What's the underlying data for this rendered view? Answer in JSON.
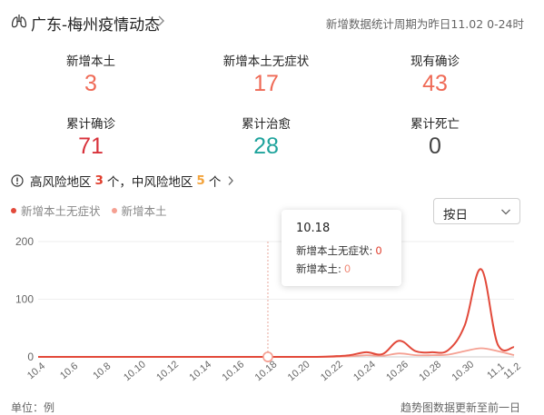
{
  "header": {
    "title": "广东-梅州疫情动态",
    "period_note": "新增数据统计周期为昨日11.02 0-24时"
  },
  "stats": [
    {
      "label": "新增本土",
      "value": "3",
      "color": "#ef6a56"
    },
    {
      "label": "新增本土无症状",
      "value": "17",
      "color": "#ef6a56"
    },
    {
      "label": "现有确诊",
      "value": "43",
      "color": "#ef6a56"
    },
    {
      "label": "累计确诊",
      "value": "71",
      "color": "#d8313a"
    },
    {
      "label": "累计治愈",
      "value": "28",
      "color": "#1ea39c"
    },
    {
      "label": "累计死亡",
      "value": "0",
      "color": "#444444"
    }
  ],
  "risk": {
    "high_label": "高风险地区",
    "high_count": "3",
    "unit": "个",
    "sep": "，",
    "mid_label": "中风险地区",
    "mid_count": "5",
    "high_color": "#e03e2d",
    "mid_color": "#f3a33b"
  },
  "legend": {
    "series1": "新增本土无症状",
    "series2": "新增本土",
    "color1": "#e2493a",
    "color2": "#f5a092"
  },
  "select": {
    "value": "按日"
  },
  "tooltip": {
    "date": "10.18",
    "row1_label": "新增本土无症状:",
    "row1_value": "0",
    "row2_label": "新增本土:",
    "row2_value": "0"
  },
  "chart_data": {
    "type": "line",
    "x": [
      "10.4",
      "10.5",
      "10.6",
      "10.7",
      "10.8",
      "10.9",
      "10.10",
      "10.11",
      "10.12",
      "10.13",
      "10.14",
      "10.15",
      "10.16",
      "10.17",
      "10.18",
      "10.19",
      "10.20",
      "10.21",
      "10.22",
      "10.23",
      "10.24",
      "10.25",
      "10.26",
      "10.27",
      "10.28",
      "10.29",
      "10.30",
      "10.31",
      "11.1",
      "11.2"
    ],
    "x_tick_labels": [
      "10.4",
      "10.6",
      "10.8",
      "10.10",
      "10.12",
      "10.14",
      "10.16",
      "10.18",
      "10.20",
      "10.22",
      "10.24",
      "10.26",
      "10.28",
      "10.30",
      "11.1",
      "11.2"
    ],
    "series": [
      {
        "name": "新增本土无症状",
        "color": "#e2493a",
        "values": [
          0,
          0,
          0,
          0,
          0,
          0,
          0,
          0,
          0,
          0,
          0,
          0,
          0,
          0,
          0,
          0,
          0,
          0,
          1,
          3,
          8,
          5,
          28,
          10,
          8,
          12,
          55,
          152,
          22,
          17
        ]
      },
      {
        "name": "新增本土",
        "color": "#f5a092",
        "values": [
          0,
          0,
          0,
          0,
          0,
          0,
          0,
          0,
          0,
          0,
          0,
          0,
          0,
          0,
          0,
          0,
          0,
          0,
          0,
          1,
          3,
          2,
          6,
          3,
          3,
          4,
          10,
          15,
          10,
          3
        ]
      }
    ],
    "y_ticks": [
      0,
      100,
      200
    ],
    "ylim": [
      0,
      200
    ],
    "highlight_index": 14,
    "grid": true
  },
  "footer": {
    "unit": "单位：例",
    "note": "趋势图数据更新至前一日"
  }
}
